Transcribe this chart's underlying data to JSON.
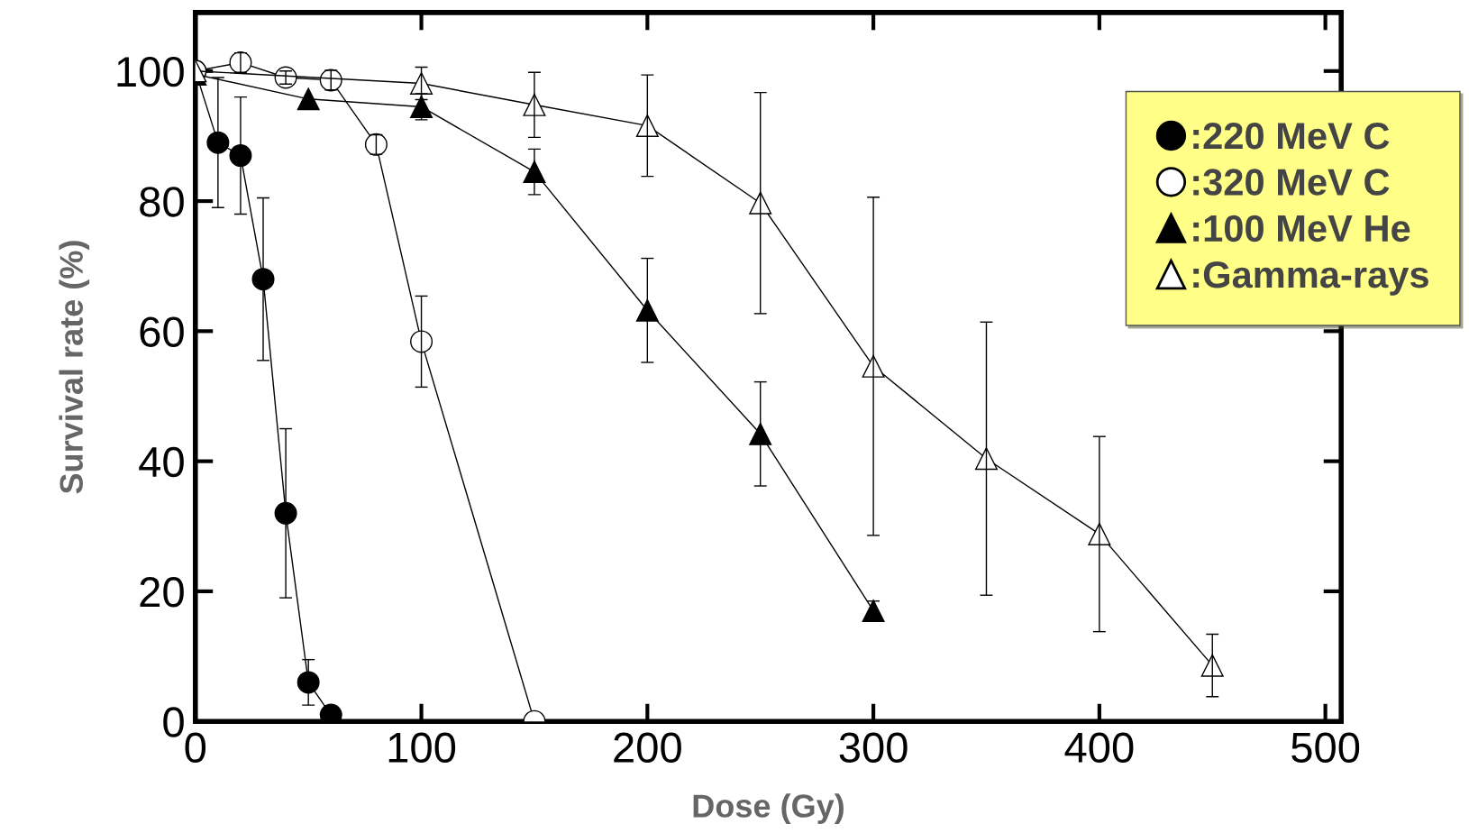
{
  "chart_data": {
    "type": "line",
    "xlabel": "Dose (Gy)",
    "ylabel": "Survival rate (%)",
    "xlim": [
      0,
      507
    ],
    "ylim": [
      0,
      109
    ],
    "xticks": [
      0,
      100,
      200,
      300,
      400,
      500
    ],
    "yticks": [
      0,
      20,
      40,
      60,
      80,
      100
    ],
    "grid": false,
    "legend": "top right",
    "line_style": "solid",
    "series": [
      {
        "name": ":220 MeV C",
        "color": "#000000",
        "marker": "circle",
        "x": [
          0,
          10,
          20,
          30,
          40,
          50,
          60
        ],
        "values": [
          100,
          89,
          87,
          68,
          32,
          6,
          1
        ],
        "errors": [
          null,
          10,
          9,
          12.5,
          13,
          3.5,
          null
        ]
      },
      {
        "name": ":320 MeV C",
        "color": "#ffffff",
        "marker": "circle",
        "x": [
          0,
          20,
          40,
          60,
          80,
          100,
          150
        ],
        "values": [
          100,
          101.3,
          99,
          98.6,
          88.7,
          58.4,
          0
        ],
        "errors": [
          null,
          1.5,
          1,
          1.5,
          1.5,
          7,
          null
        ]
      },
      {
        "name": ":100 MeV He",
        "color": "#000000",
        "marker": "triangle",
        "x": [
          0,
          50,
          100,
          150,
          200,
          250,
          300
        ],
        "values": [
          99.5,
          95.7,
          94.5,
          84.5,
          63.2,
          44.2,
          17
        ],
        "errors": [
          null,
          null,
          2,
          3.5,
          8,
          8,
          1.5
        ]
      },
      {
        "name": ":Gamma-rays",
        "color": "#ffffff",
        "marker": "triangle",
        "x": [
          0,
          100,
          150,
          200,
          250,
          300,
          350,
          400,
          450
        ],
        "values": [
          100,
          98.1,
          94.8,
          91.6,
          79.7,
          54.6,
          40.4,
          28.8,
          8.6
        ],
        "errors": [
          null,
          2.5,
          5,
          7.8,
          17,
          26,
          21,
          15,
          4.8
        ]
      }
    ]
  }
}
